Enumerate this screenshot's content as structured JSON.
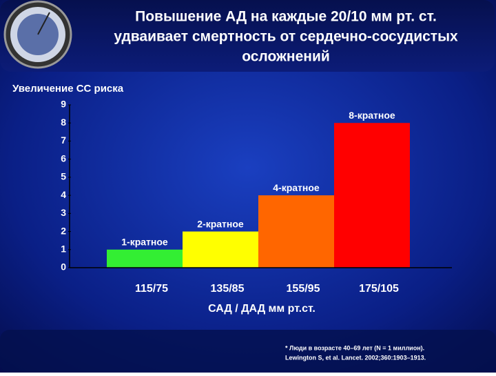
{
  "chart_data": {
    "type": "bar",
    "title": [
      "Повышение АД на каждые 20/10 мм рт. ст.",
      "удваивает смертность от сердечно-сосудистых",
      "осложнений"
    ],
    "y_label": "Увеличение  СС риска",
    "x_label": "САД / ДАД  мм рт.ст.",
    "categories": [
      "115/75",
      "135/85",
      "155/95",
      "175/105"
    ],
    "values": [
      1,
      2,
      4,
      8
    ],
    "value_labels": [
      "1-кратное",
      "2-кратное",
      "4-кратное",
      "8-кратное"
    ],
    "colors": [
      "#33ee33",
      "#ffff00",
      "#ff6600",
      "#ff0000"
    ],
    "ylim": [
      0,
      9
    ],
    "yticks": [
      0,
      1,
      2,
      3,
      4,
      5,
      6,
      7,
      8,
      9
    ],
    "footnote": [
      "* Люди в возрасте 40–69 лет (N = 1 миллион).",
      "Lewington S, et al. Lancet. 2002;360:1903–1913."
    ]
  }
}
